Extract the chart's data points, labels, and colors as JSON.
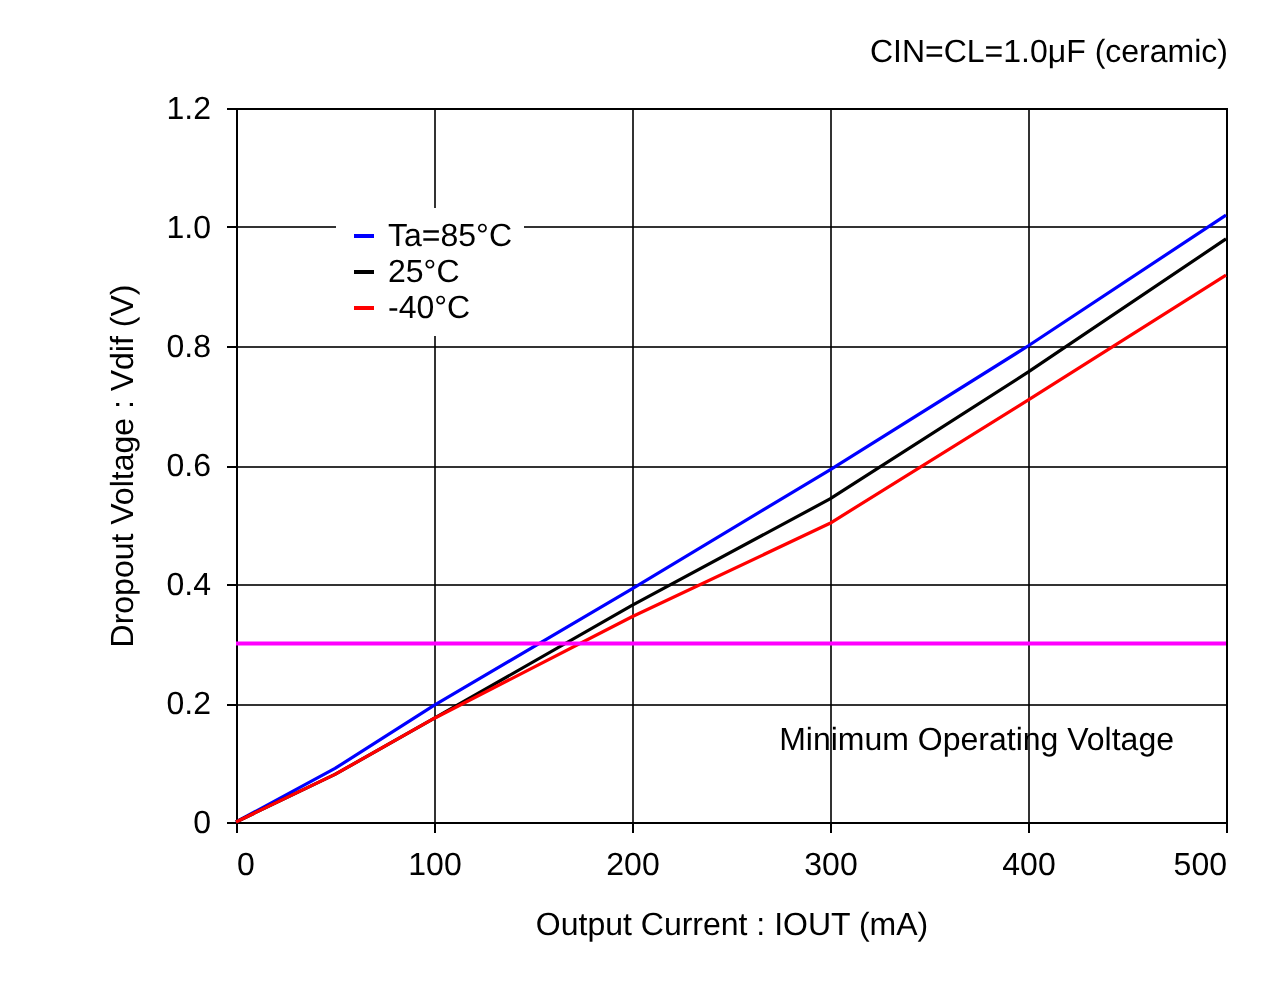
{
  "chart_data": {
    "type": "line",
    "title": "CIN=CL=1.0μF  (ceramic)",
    "xlabel": "Output Current : IOUT (mA)",
    "ylabel": "Dropout Voltage : Vdif (V)",
    "x": [
      0,
      50,
      100,
      200,
      300,
      400,
      500
    ],
    "series": [
      {
        "name": "Ta=85°C",
        "color": "#0000ff",
        "values": [
          0,
          0.09,
          0.196,
          0.392,
          0.592,
          0.8,
          1.02
        ]
      },
      {
        "name": "25°C",
        "color": "#000000",
        "values": [
          0,
          0.08,
          0.174,
          0.364,
          0.543,
          0.756,
          0.98
        ]
      },
      {
        "name": "-40°C",
        "color": "#ff0000",
        "values": [
          0,
          0.08,
          0.174,
          0.345,
          0.502,
          0.709,
          0.919
        ]
      }
    ],
    "xlim": [
      0,
      500
    ],
    "xticks": [
      0,
      100,
      200,
      300,
      400,
      500
    ],
    "ylim": [
      0,
      1.2
    ],
    "yticks": [
      {
        "value": 0,
        "label": "0"
      },
      0.2,
      0.4,
      0.6,
      0.8,
      {
        "value": 1,
        "label": "1.0"
      },
      1.2
    ],
    "ref_lines": [
      {
        "axis": "y",
        "value": 0.3,
        "label": "Minimum Operating Voltage",
        "color": "#ff00ff"
      }
    ],
    "grid": true,
    "legend": "top left",
    "marker": "none",
    "line_style": "solid"
  }
}
